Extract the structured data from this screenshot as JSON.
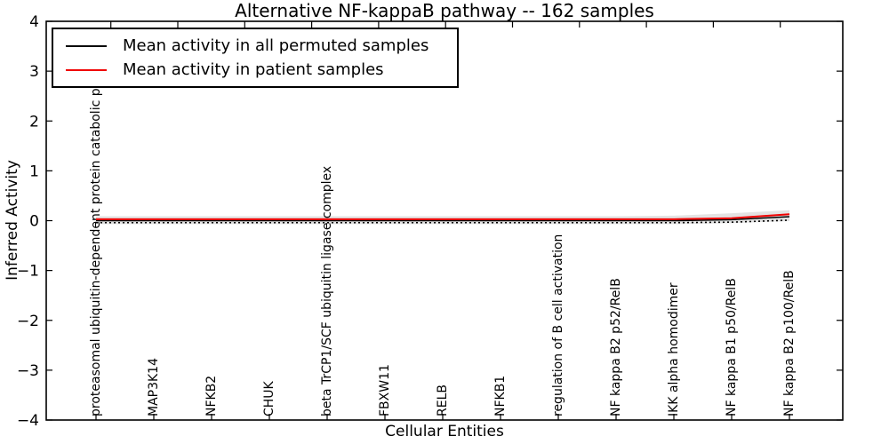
{
  "chart_data": {
    "type": "line",
    "title": "Alternative NF-kappaB pathway -- 162 samples",
    "xlabel": "Cellular Entities",
    "ylabel": "Inferred Activity",
    "ylim": [
      -4,
      4
    ],
    "yticks": [
      4,
      3,
      2,
      1,
      0,
      -1,
      -2,
      -3,
      -4
    ],
    "grid": false,
    "legend_position": "upper left",
    "categories": [
      "proteasomal ubiquitin-dependent protein catabolic pr",
      "MAP3K14",
      "NFKB2",
      "CHUK",
      "beta TrCP1/SCF ubiquitin ligase complex",
      "FBXW11",
      "RELB",
      "NFKB1",
      "regulation of B cell activation",
      "NF kappa B2 p52/RelB",
      "IKK alpha homodimer",
      "NF kappa B1 p50/RelB",
      "NF kappa B2 p100/RelB"
    ],
    "series": [
      {
        "name": "Mean activity in all permuted samples",
        "color": "#000000",
        "style": "solid",
        "in_legend": true,
        "values": [
          0.0,
          0.0,
          0.0,
          0.0,
          0.0,
          0.0,
          0.0,
          0.0,
          0.0,
          0.0,
          0.0,
          0.02,
          0.08
        ]
      },
      {
        "name": "Mean activity in patient samples",
        "color": "#f00000",
        "style": "solid",
        "in_legend": true,
        "values": [
          0.03,
          0.03,
          0.03,
          0.03,
          0.03,
          0.03,
          0.03,
          0.03,
          0.03,
          0.03,
          0.03,
          0.05,
          0.13
        ]
      },
      {
        "name": "dotted_reference",
        "color": "#000000",
        "style": "dotted",
        "in_legend": false,
        "values": [
          -0.04,
          -0.04,
          -0.04,
          -0.04,
          -0.04,
          -0.04,
          -0.04,
          -0.04,
          -0.04,
          -0.04,
          -0.04,
          -0.03,
          0.01
        ]
      }
    ],
    "band": {
      "color": "#d4d4d4",
      "upper": [
        0.09,
        0.09,
        0.09,
        0.09,
        0.09,
        0.09,
        0.09,
        0.09,
        0.09,
        0.09,
        0.1,
        0.15,
        0.21
      ],
      "lower": [
        -0.07,
        -0.07,
        -0.07,
        -0.07,
        -0.07,
        -0.07,
        -0.07,
        -0.07,
        -0.07,
        -0.07,
        -0.07,
        -0.05,
        -0.01
      ]
    }
  }
}
